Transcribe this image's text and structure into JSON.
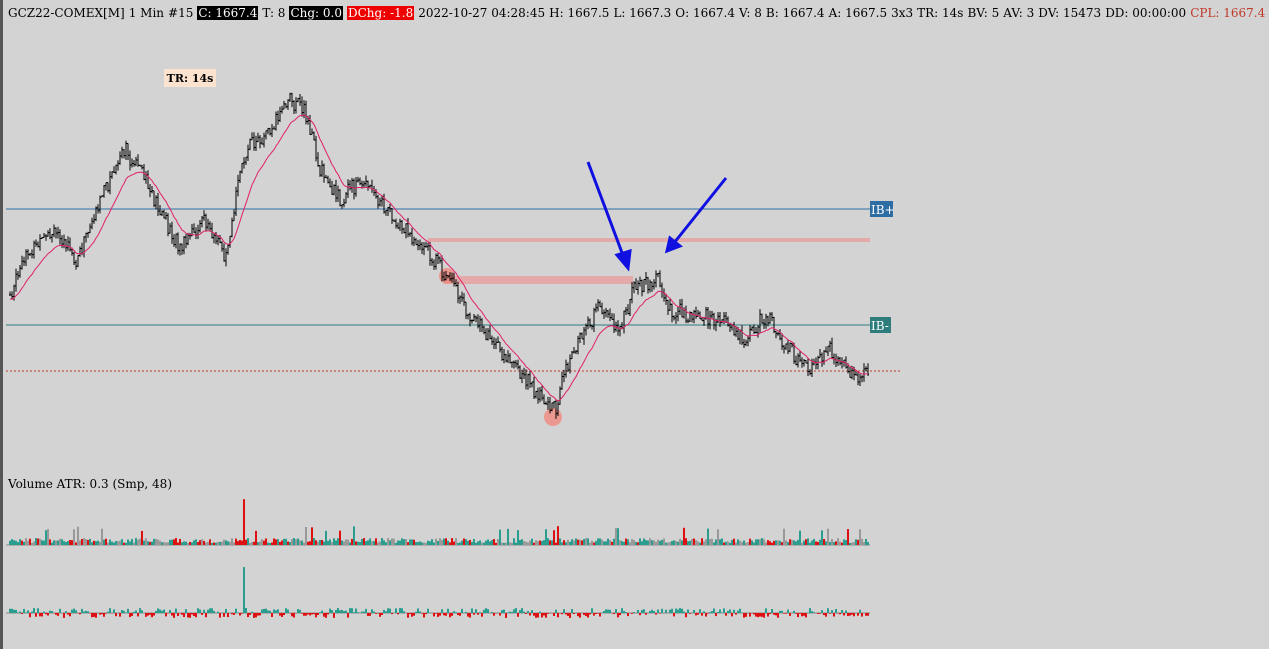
{
  "header": {
    "symbol": "GCZ22-COMEX[M]",
    "interval": "1 Min",
    "bar_number": "#15",
    "close": "C: 1667.4",
    "ticks": "T: 8",
    "change": "Chg: 0.0",
    "day_change": "DChg: -1.8",
    "timestamp": "2022-10-27 04:28:45",
    "high": "H: 1667.5",
    "low": "L: 1667.3",
    "open": "O: 1667.4",
    "volume": "V: 8",
    "bid": "B: 1667.4",
    "ask": "A: 1667.5",
    "bar_type": "3x3",
    "time_range": "TR: 14s",
    "bid_volume": "BV: 5",
    "ask_volume": "AV: 3",
    "day_volume": "DV: 15473",
    "duration": "DD: 00:00:00",
    "cpl": "CPL: 1667.4"
  },
  "chart": {
    "tr_badge": "TR: 14s",
    "ib_high": "IB+",
    "ib_low": "IB-"
  },
  "volume_panel": {
    "label": "Volume  ATR: 0.3  (Smp, 48)"
  }
}
